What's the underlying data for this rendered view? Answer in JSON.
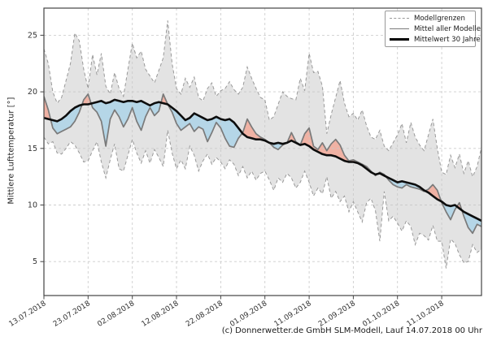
{
  "chart_data": {
    "type": "line",
    "title": "",
    "ylabel": "Mittlere Lufttemperatur [°]",
    "caption": "(c) Donnerwetter.de GmbH SLM-Modell, Lauf 14.07.2018 00 Uhr",
    "xlim": [
      0,
      99
    ],
    "ylim": [
      2.0,
      27.4
    ],
    "grid": true,
    "legend_position": "top-right",
    "legend": [
      {
        "label": "Modellgrenzen",
        "style": "dashed"
      },
      {
        "label": "Mittel aller Modelle",
        "style": "mean"
      },
      {
        "label": "Mittelwert 30 Jahre",
        "style": "climate"
      }
    ],
    "x_tick_days": [
      0,
      10,
      20,
      30,
      40,
      50,
      60,
      70,
      80,
      90
    ],
    "x_tick_labels": [
      "13.07.2018",
      "23.07.2018",
      "02.08.2018",
      "12.08.2018",
      "22.08.2018",
      "01.09.2018",
      "11.09.2018",
      "21.09.2018",
      "01.10.2018",
      "11.10.2018"
    ],
    "y_ticks": [
      5,
      10,
      15,
      20,
      25
    ],
    "colors": {
      "envelope_fill": "#e3e3e3",
      "warm_fill": "#f0b2a4",
      "cold_fill": "#b5d6e7",
      "boundary_line": "#999999",
      "mean_line": "#7a7a7a",
      "climate_line": "#0d0d0d",
      "grid_line": "#c8c8c8",
      "frame": "#444444",
      "tick_text": "#333333"
    },
    "series": [
      {
        "name": "Modellgrenzen oben",
        "role": "upper",
        "values": [
          23.8,
          22.5,
          20.0,
          19.0,
          19.5,
          21.0,
          22.5,
          25.2,
          24.5,
          22.0,
          20.3,
          23.3,
          21.5,
          23.4,
          20.5,
          19.8,
          21.7,
          20.3,
          19.6,
          22.0,
          24.3,
          23.0,
          23.6,
          22.0,
          21.4,
          20.8,
          21.9,
          23.0,
          26.3,
          22.5,
          20.3,
          19.8,
          21.2,
          20.4,
          21.3,
          19.5,
          19.2,
          20.3,
          20.8,
          19.6,
          20.1,
          20.3,
          20.9,
          20.2,
          19.8,
          20.4,
          22.2,
          21.2,
          20.3,
          19.5,
          19.3,
          17.5,
          17.8,
          18.9,
          20.0,
          19.6,
          19.4,
          19.3,
          21.2,
          20.1,
          23.4,
          21.7,
          21.8,
          20.5,
          16.3,
          18.0,
          19.5,
          21.0,
          19.0,
          17.8,
          18.1,
          17.5,
          18.4,
          17.0,
          16.0,
          15.8,
          16.6,
          15.2,
          14.8,
          15.5,
          16.2,
          17.2,
          15.5,
          17.3,
          16.0,
          15.3,
          14.8,
          16.2,
          17.6,
          15.0,
          12.9,
          12.7,
          14.4,
          13.3,
          14.5,
          12.8,
          13.9,
          12.5,
          13.4,
          15.1
        ]
      },
      {
        "name": "Modellgrenzen unten",
        "role": "lower",
        "values": [
          16.0,
          15.4,
          15.6,
          14.6,
          14.5,
          15.0,
          15.6,
          15.3,
          14.6,
          13.8,
          13.9,
          14.8,
          15.6,
          13.8,
          12.4,
          14.0,
          15.4,
          13.2,
          13.0,
          14.4,
          15.8,
          14.6,
          13.7,
          14.8,
          13.7,
          14.9,
          14.2,
          13.4,
          16.6,
          14.6,
          13.2,
          14.0,
          13.2,
          15.2,
          14.4,
          13.0,
          13.9,
          14.5,
          13.6,
          14.2,
          13.8,
          13.2,
          14.0,
          13.6,
          12.6,
          13.4,
          12.4,
          13.0,
          12.2,
          12.8,
          13.0,
          12.2,
          11.3,
          12.4,
          12.0,
          12.8,
          12.4,
          11.5,
          12.0,
          13.0,
          12.0,
          10.8,
          11.5,
          11.0,
          12.5,
          10.6,
          11.2,
          10.3,
          10.8,
          9.4,
          10.3,
          9.4,
          8.5,
          10.2,
          10.6,
          9.5,
          6.8,
          11.2,
          8.6,
          9.0,
          8.4,
          7.7,
          8.6,
          8.1,
          6.5,
          7.5,
          7.3,
          6.9,
          8.2,
          6.8,
          6.8,
          4.4,
          7.0,
          6.6,
          5.6,
          4.9,
          5.0,
          6.5,
          5.8,
          6.1
        ]
      },
      {
        "name": "Mittel aller Modelle",
        "role": "mean",
        "values": [
          19.6,
          18.4,
          16.8,
          16.3,
          16.5,
          16.7,
          16.9,
          17.4,
          18.2,
          19.3,
          19.8,
          18.6,
          18.2,
          17.4,
          15.2,
          17.6,
          18.4,
          17.8,
          16.9,
          17.6,
          18.6,
          17.4,
          16.6,
          17.8,
          18.6,
          17.9,
          18.3,
          19.8,
          18.9,
          18.2,
          17.2,
          16.6,
          16.9,
          17.2,
          16.5,
          16.9,
          16.7,
          15.6,
          16.4,
          17.3,
          16.8,
          15.9,
          15.2,
          15.1,
          15.9,
          16.4,
          17.6,
          16.9,
          16.3,
          16.0,
          15.8,
          15.5,
          15.1,
          14.9,
          15.3,
          15.5,
          16.4,
          15.6,
          15.3,
          16.3,
          16.8,
          15.2,
          14.9,
          15.5,
          14.8,
          15.4,
          15.8,
          15.3,
          14.4,
          13.9,
          14.0,
          13.8,
          13.6,
          13.4,
          13.0,
          12.6,
          12.9,
          12.7,
          12.2,
          11.8,
          11.6,
          11.5,
          11.8,
          11.6,
          11.5,
          11.4,
          11.2,
          11.4,
          11.8,
          11.3,
          10.2,
          9.4,
          8.7,
          9.6,
          10.2,
          9.0,
          8.0,
          7.5,
          8.3,
          8.1
        ]
      },
      {
        "name": "Mittelwert 30 Jahre",
        "role": "climate",
        "values": [
          17.7,
          17.6,
          17.5,
          17.4,
          17.6,
          17.9,
          18.3,
          18.6,
          18.8,
          18.9,
          18.9,
          19.0,
          19.1,
          19.2,
          19.0,
          19.1,
          19.3,
          19.2,
          19.1,
          19.2,
          19.2,
          19.1,
          19.2,
          19.0,
          18.8,
          19.0,
          19.1,
          19.0,
          18.9,
          18.6,
          18.3,
          17.9,
          17.5,
          17.7,
          18.1,
          17.9,
          17.7,
          17.5,
          17.6,
          17.8,
          17.6,
          17.5,
          17.6,
          17.3,
          16.8,
          16.3,
          16.0,
          15.9,
          15.8,
          15.8,
          15.7,
          15.5,
          15.4,
          15.5,
          15.4,
          15.5,
          15.7,
          15.5,
          15.3,
          15.4,
          15.2,
          14.9,
          14.7,
          14.5,
          14.4,
          14.4,
          14.3,
          14.1,
          13.9,
          13.8,
          13.8,
          13.7,
          13.5,
          13.2,
          12.9,
          12.7,
          12.8,
          12.6,
          12.4,
          12.2,
          12.0,
          12.1,
          12.0,
          11.9,
          11.8,
          11.6,
          11.3,
          11.1,
          10.8,
          10.5,
          10.3,
          10.0,
          9.9,
          10.0,
          9.7,
          9.4,
          9.2,
          9.0,
          8.8,
          8.6
        ]
      }
    ]
  }
}
